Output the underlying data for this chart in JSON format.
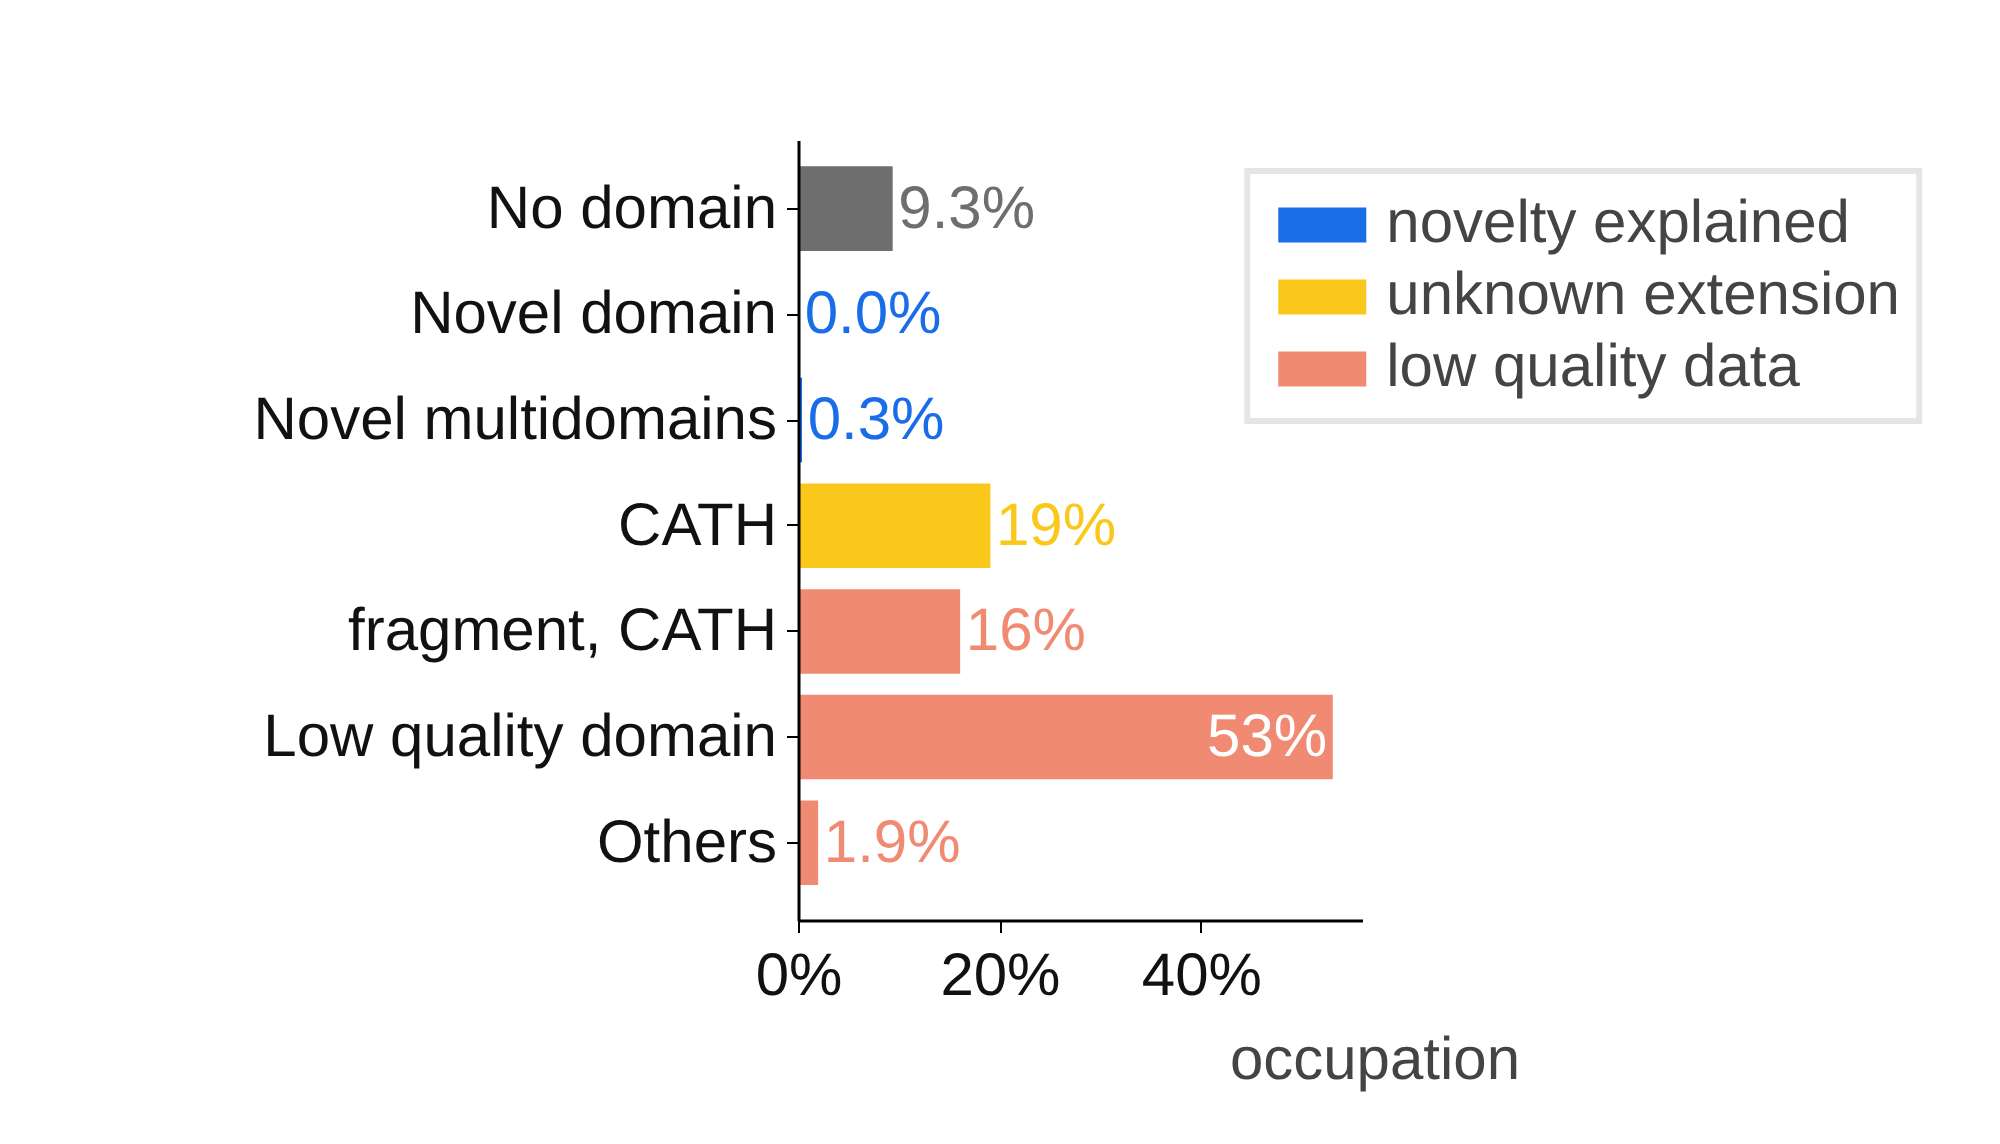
{
  "chart_data": {
    "type": "bar",
    "orientation": "horizontal",
    "categories": [
      "No domain",
      "Novel domain",
      "Novel multidomains",
      "CATH",
      "fragment, CATH",
      "Low quality domain",
      "Others"
    ],
    "series": [
      {
        "color": "#6e6e6e",
        "values": [
          9.3,
          null,
          null,
          null,
          null,
          null,
          null
        ],
        "value_labels": [
          "9.3%",
          null,
          null,
          null,
          null,
          null,
          null
        ]
      },
      {
        "name": "novelty explained",
        "color": "#1a6de8",
        "values": [
          null,
          0.0,
          0.3,
          null,
          null,
          null,
          null
        ],
        "value_labels": [
          null,
          "0.0%",
          "0.3%",
          null,
          null,
          null,
          null
        ]
      },
      {
        "name": "unknown extension",
        "color": "#f9c81a",
        "values": [
          null,
          null,
          null,
          19,
          null,
          null,
          null
        ],
        "value_labels": [
          null,
          null,
          null,
          "19%",
          null,
          null,
          null
        ]
      },
      {
        "name": "low quality data",
        "color": "#f08a72",
        "values": [
          null,
          null,
          null,
          null,
          16,
          53,
          1.9
        ],
        "value_labels": [
          null,
          null,
          null,
          null,
          "16%",
          "53%",
          "1.9%"
        ]
      }
    ],
    "xlim": [
      0,
      56
    ],
    "xticks": [
      {
        "value": 0,
        "label": "0%"
      },
      {
        "value": 20,
        "label": "20%"
      },
      {
        "value": 40,
        "label": "40%"
      }
    ],
    "xlabel": "occupation",
    "grid": false,
    "legend": "top right"
  }
}
